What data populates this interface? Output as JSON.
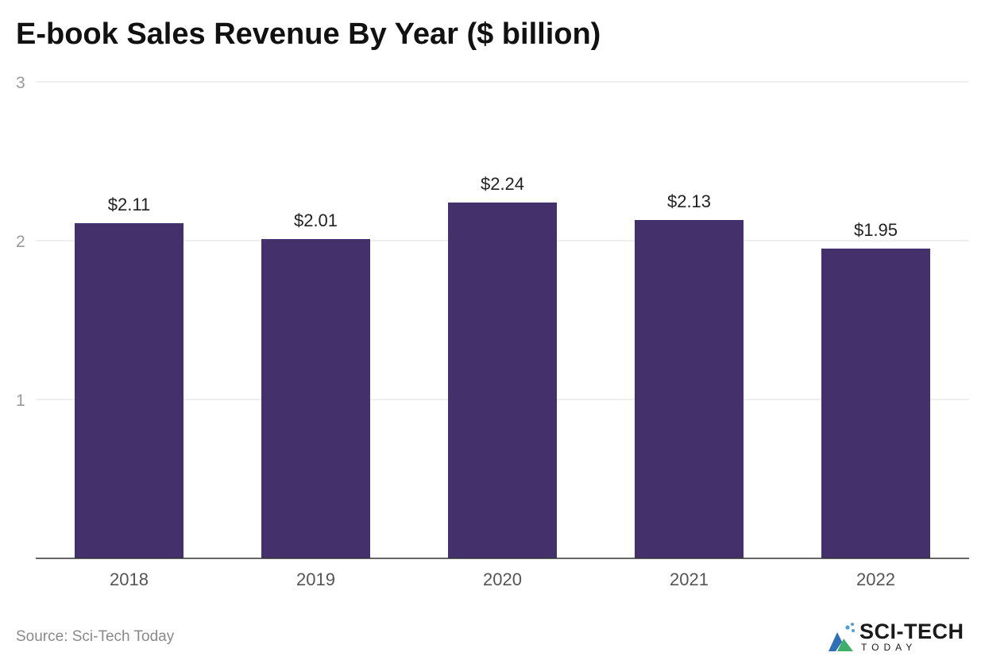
{
  "chart_data": {
    "type": "bar",
    "title": "E-book Sales Revenue By Year ($ billion)",
    "categories": [
      "2018",
      "2019",
      "2020",
      "2021",
      "2022"
    ],
    "values": [
      2.11,
      2.01,
      2.24,
      2.13,
      1.95
    ],
    "data_labels": [
      "$2.11",
      "$2.01",
      "$2.24",
      "$2.13",
      "$1.95"
    ],
    "y_ticks": [
      1,
      2,
      3
    ],
    "ylim": [
      0,
      3
    ],
    "xlabel": "",
    "ylabel": "",
    "grid": true,
    "colors": {
      "bar": "#44306b",
      "grid": "#e3e3e3",
      "axis": "#333333"
    }
  },
  "footer": {
    "source": "Source: Sci-Tech Today"
  },
  "logo": {
    "name": "SCI-TECH",
    "subtitle": "TODAY",
    "icon": "sci-tech-logo-icon",
    "colors": {
      "primary": "#2f6fb3",
      "accent": "#3fae6a",
      "dots": "#4fa0d8"
    }
  }
}
